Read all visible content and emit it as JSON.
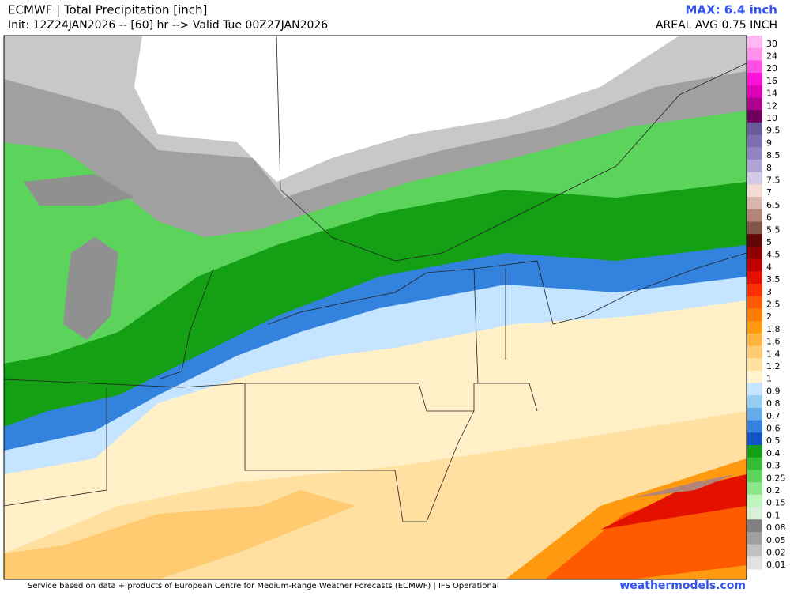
{
  "header": {
    "title": "ECMWF | Total Precipitation [inch]",
    "init": "Init: 12Z24JAN2026 -- [60] hr --> Valid Tue 00Z27JAN2026",
    "max": "MAX: 6.4 inch",
    "areal_avg": "AREAL AVG 0.75 INCH"
  },
  "colorbar": {
    "labels": [
      "30",
      "24",
      "20",
      "16",
      "14",
      "12",
      "10",
      "9.5",
      "9",
      "8.5",
      "8",
      "7.5",
      "7",
      "6.5",
      "6",
      "5.5",
      "5",
      "4.5",
      "4",
      "3.5",
      "3",
      "2.5",
      "2",
      "1.8",
      "1.6",
      "1.4",
      "1.2",
      "1",
      "0.9",
      "0.8",
      "0.7",
      "0.6",
      "0.5",
      "0.4",
      "0.3",
      "0.25",
      "0.2",
      "0.15",
      "0.1",
      "0.08",
      "0.05",
      "0.02",
      "0.01"
    ],
    "colors": [
      "#ffb8f4",
      "#ff90ec",
      "#ff50e4",
      "#ff10d8",
      "#e000b8",
      "#b00090",
      "#700060",
      "#6a5a9a",
      "#7e6eb0",
      "#9484c4",
      "#b0a4d6",
      "#d4cce6",
      "#f2dcd4",
      "#d8b4aa",
      "#b48478",
      "#84564a",
      "#600808",
      "#900000",
      "#c00000",
      "#e41000",
      "#ff3000",
      "#ff5a00",
      "#ff7c00",
      "#ff9a10",
      "#ffb440",
      "#ffca70",
      "#ffe0a0",
      "#fff2cc",
      "#c4e4ff",
      "#96cbf2",
      "#64abe8",
      "#3282de",
      "#1254c6",
      "#14a014",
      "#34bc34",
      "#5cd45c",
      "#8ce68c",
      "#bef6be",
      "#d8f0d8",
      "#808080",
      "#a0a0a0",
      "#c0c0c0",
      "#e2e2e2"
    ]
  },
  "footer": {
    "credit": "Service based on data + products of European Centre for Medium-Range Weather Forecasts (ECMWF) | IFS Operational",
    "site": "weathermodels.com"
  }
}
